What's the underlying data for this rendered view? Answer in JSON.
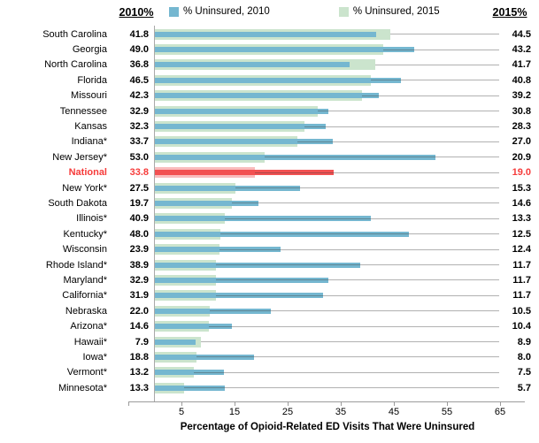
{
  "header": {
    "left_label": "2010%",
    "right_label": "2015%"
  },
  "legend": {
    "items": [
      {
        "label": "% Uninsured, 2010",
        "color": "#75b7d0"
      },
      {
        "label": "% Uninsured, 2015",
        "color": "#cbe4cd"
      }
    ]
  },
  "chart_data": {
    "type": "bar",
    "orientation": "horizontal",
    "title": "",
    "xlabel": "Percentage of Opioid-Related ED Visits That Were Uninsured",
    "x_ticks": [
      5,
      15,
      25,
      35,
      45,
      55,
      65
    ],
    "x_range": [
      0,
      65
    ],
    "grid": false,
    "legend_position": "top",
    "highlight_category": "National",
    "categories": [
      "South Carolina",
      "Georgia",
      "North Carolina",
      "Florida",
      "Missouri",
      "Tennessee",
      "Kansas",
      "Indiana*",
      "New Jersey*",
      "National",
      "New York*",
      "South Dakota",
      "Illinois*",
      "Kentucky*",
      "Wisconsin",
      "Rhode Island*",
      "Maryland*",
      "California*",
      "Nebraska",
      "Arizona*",
      "Hawaii*",
      "Iowa*",
      "Vermont*",
      "Minnesota*"
    ],
    "series": [
      {
        "name": "% Uninsured, 2010",
        "values": [
          41.8,
          49.0,
          36.8,
          46.5,
          42.3,
          32.9,
          32.3,
          33.7,
          53.0,
          33.8,
          27.5,
          19.7,
          40.9,
          48.0,
          23.9,
          38.9,
          32.9,
          31.9,
          22.0,
          14.6,
          7.9,
          18.8,
          13.2,
          13.3
        ]
      },
      {
        "name": "% Uninsured, 2015",
        "values": [
          44.5,
          43.2,
          41.7,
          40.8,
          39.2,
          30.8,
          28.3,
          27.0,
          20.9,
          19.0,
          15.3,
          14.6,
          13.3,
          12.5,
          12.4,
          11.7,
          11.7,
          11.7,
          10.5,
          10.4,
          8.9,
          8.0,
          7.5,
          5.7
        ]
      }
    ]
  },
  "colors": {
    "bar_2010": "#75b7d0",
    "bar_2015": "#cbe4cd",
    "national_bar_2010": "#f25152",
    "national_bar_2015": "#f9bcbd",
    "national_text": "#f63b3a",
    "leader_line": "#a6a6a6",
    "axis_line": "#9b9b9b",
    "text": "#000000"
  }
}
